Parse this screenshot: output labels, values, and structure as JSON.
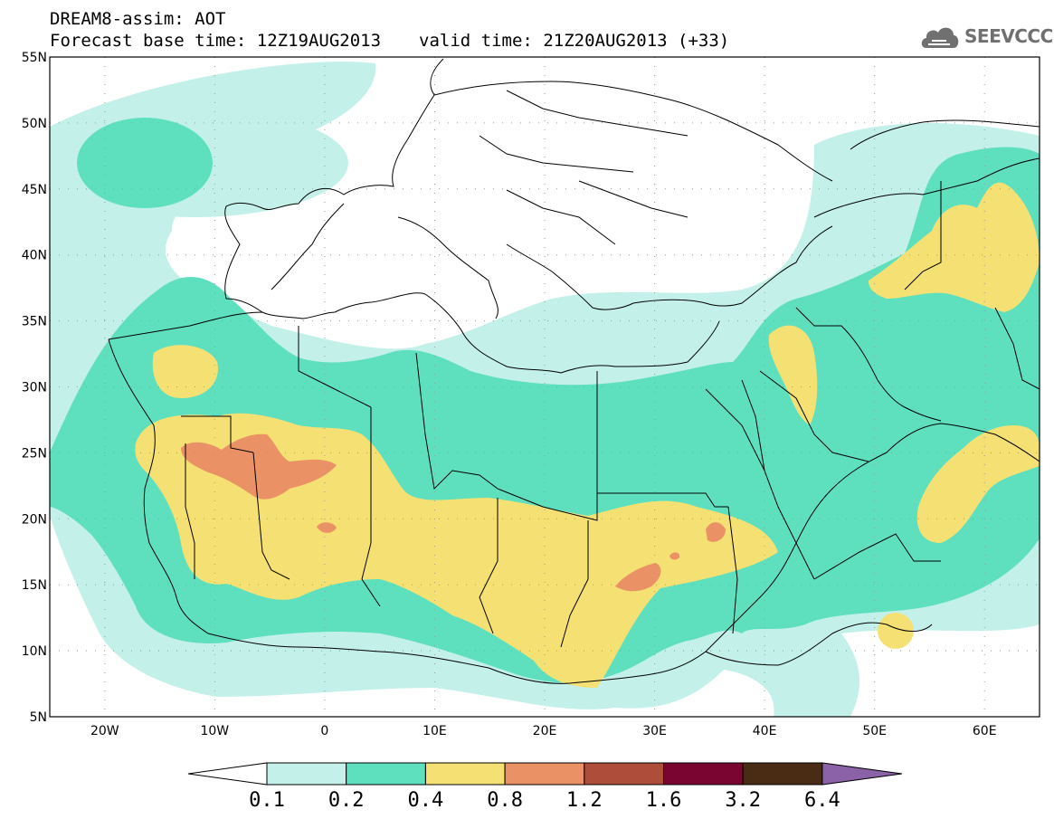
{
  "header": {
    "title": "DREAM8-assim: AOT",
    "base_time": "Forecast base time: 12Z19AUG2013",
    "valid_time": "valid time: 21Z20AUG2013 (+33)"
  },
  "logo": {
    "text": "SEEVCCC",
    "icon": "cloud-icon",
    "color": "#707070"
  },
  "map": {
    "lat_labels": [
      "55N",
      "50N",
      "45N",
      "40N",
      "35N",
      "30N",
      "25N",
      "20N",
      "15N",
      "10N",
      "5N"
    ],
    "lon_labels": [
      "20W",
      "10W",
      "0",
      "10E",
      "20E",
      "30E",
      "40E",
      "50E",
      "60E"
    ],
    "lon_range": [
      -25,
      65
    ],
    "lat_range": [
      5,
      55
    ],
    "grid": "dotted"
  },
  "colorbar": {
    "levels": [
      "0.1",
      "0.2",
      "0.4",
      "0.8",
      "1.2",
      "1.6",
      "3.2",
      "6.4"
    ],
    "colors": [
      "#c4f0ea",
      "#5ee0bf",
      "#f5e173",
      "#ea9266",
      "#ad4d3a",
      "#7b0531",
      "#4a2b13"
    ],
    "under_color": "#ffffff",
    "over_color": "#8b62a8"
  }
}
